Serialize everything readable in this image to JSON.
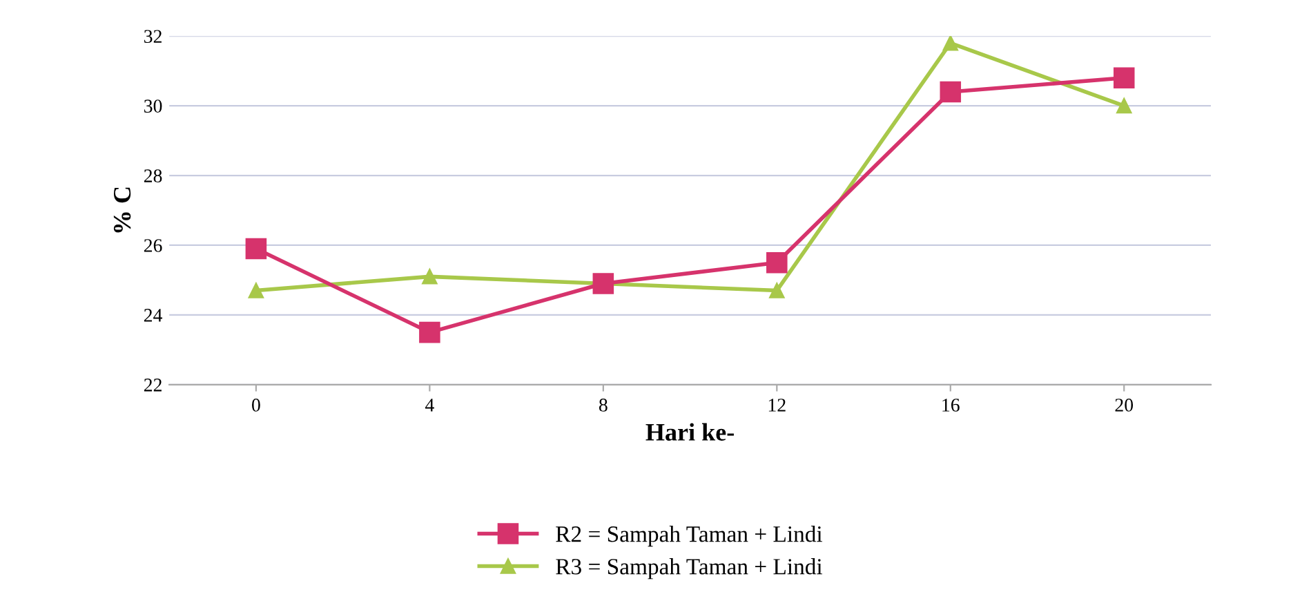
{
  "chart_data": {
    "type": "line",
    "xlabel": "Hari ke-",
    "ylabel": "% C",
    "categories": [
      "0",
      "4",
      "8",
      "12",
      "16",
      "20"
    ],
    "series": [
      {
        "name": "R2 = Sampah Taman + Lindi",
        "color": "#d6336c",
        "marker": "square",
        "values": [
          25.9,
          23.5,
          24.9,
          25.5,
          30.4,
          30.8
        ]
      },
      {
        "name": "R3 = Sampah Taman + Lindi",
        "color": "#a8c84a",
        "marker": "triangle",
        "values": [
          24.7,
          25.1,
          24.9,
          24.7,
          31.8,
          30.0
        ]
      }
    ],
    "ylim": [
      22,
      32
    ],
    "yticks": [
      22,
      24,
      26,
      28,
      30,
      32
    ],
    "grid": "y",
    "legend": "bottom",
    "line_style": "solid"
  }
}
